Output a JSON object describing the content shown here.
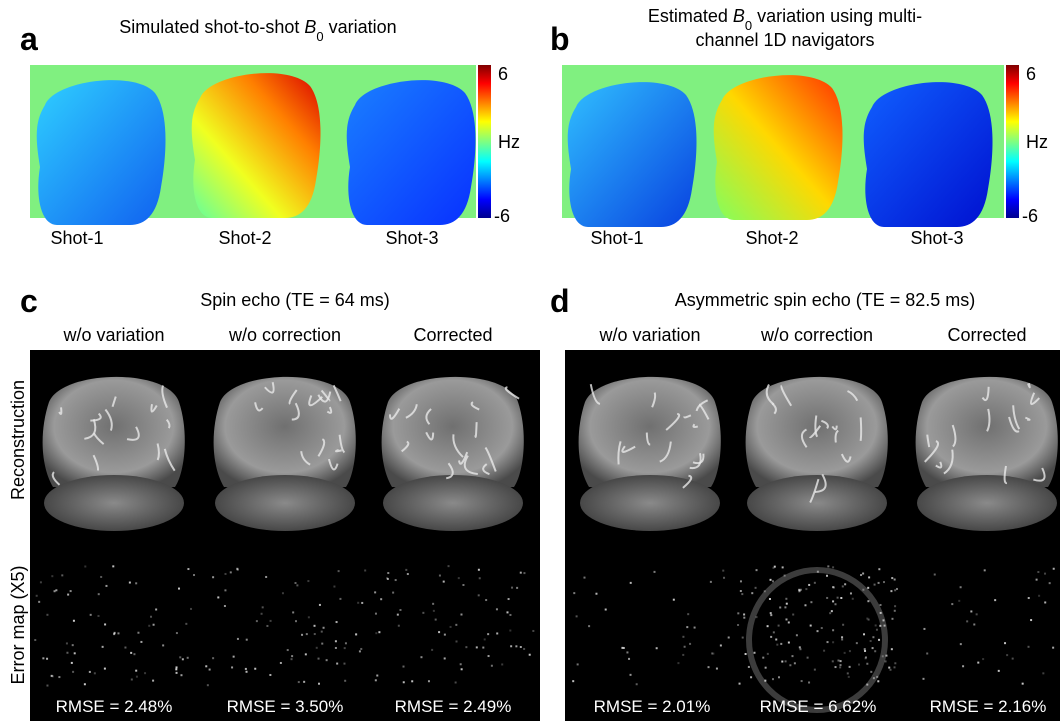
{
  "top_panels": [
    {
      "letter": "a",
      "title_lines": [
        [
          {
            "text": "Simulated shot-to-shot "
          },
          {
            "text": "B",
            "italic": true
          },
          {
            "text": "0",
            "sub": true
          },
          {
            "text": " variation"
          }
        ]
      ],
      "colorbar": {
        "max": "6",
        "unit": "Hz",
        "min": "-6"
      },
      "shots": [
        "Shot-1",
        "Shot-2",
        "Shot-3"
      ]
    },
    {
      "letter": "b",
      "title_lines": [
        [
          {
            "text": "Estimated  "
          },
          {
            "text": "B",
            "italic": true
          },
          {
            "text": "0",
            "sub": true
          },
          {
            "text": " variation using multi-"
          }
        ],
        [
          {
            "text": "channel 1D navigators"
          }
        ]
      ],
      "colorbar": {
        "max": "6",
        "unit": "Hz",
        "min": "-6"
      },
      "shots": [
        "Shot-1",
        "Shot-2",
        "Shot-3"
      ]
    }
  ],
  "bottom_panels": [
    {
      "letter": "c",
      "title": "Spin echo (TE = 64 ms)",
      "columns": [
        "w/o variation",
        "w/o correction",
        "Corrected"
      ],
      "row_labels": [
        "Reconstruction",
        "Error map (X5)"
      ],
      "rmse": [
        "RMSE = 2.48%",
        "RMSE = 3.50%",
        "RMSE = 2.49%"
      ]
    },
    {
      "letter": "d",
      "title": "Asymmetric spin echo (TE = 82.5 ms)",
      "columns": [
        "w/o variation",
        "w/o correction",
        "Corrected"
      ],
      "rmse": [
        "RMSE = 2.01%",
        "RMSE = 6.62%",
        "RMSE = 2.16%"
      ]
    }
  ]
}
